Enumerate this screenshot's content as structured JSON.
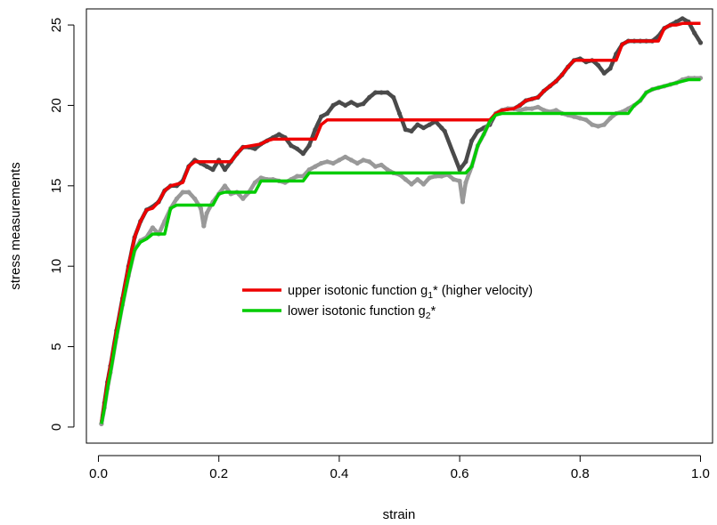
{
  "chart_data": {
    "type": "scatter",
    "title": "",
    "xlabel": "strain",
    "ylabel": "stress measurements",
    "xlim": [
      -0.02,
      1.02
    ],
    "ylim": [
      -1.0,
      26.0
    ],
    "x_ticks": [
      {
        "value": 0.0,
        "label": "0.0"
      },
      {
        "value": 0.2,
        "label": "0.2"
      },
      {
        "value": 0.4,
        "label": "0.4"
      },
      {
        "value": 0.6,
        "label": "0.6"
      },
      {
        "value": 0.8,
        "label": "0.8"
      },
      {
        "value": 1.0,
        "label": "1.0"
      }
    ],
    "y_ticks": [
      {
        "value": 0,
        "label": "0"
      },
      {
        "value": 5,
        "label": "5"
      },
      {
        "value": 10,
        "label": "10"
      },
      {
        "value": 15,
        "label": "15"
      },
      {
        "value": 20,
        "label": "20"
      },
      {
        "value": 25,
        "label": "25"
      }
    ],
    "grid": false,
    "legend_position": "center-right",
    "series": [
      {
        "kind": "points",
        "color": "#4a4a4a",
        "points": [
          [
            0.005,
            0.2
          ],
          [
            0.01,
            1.5
          ],
          [
            0.015,
            2.8
          ],
          [
            0.02,
            3.8
          ],
          [
            0.03,
            6.0
          ],
          [
            0.04,
            8.0
          ],
          [
            0.05,
            10.0
          ],
          [
            0.06,
            11.8
          ],
          [
            0.07,
            12.8
          ],
          [
            0.08,
            13.5
          ],
          [
            0.09,
            13.7
          ],
          [
            0.1,
            14.0
          ],
          [
            0.11,
            14.7
          ],
          [
            0.12,
            15.0
          ],
          [
            0.13,
            15.0
          ],
          [
            0.14,
            15.3
          ],
          [
            0.15,
            16.2
          ],
          [
            0.16,
            16.6
          ],
          [
            0.17,
            16.4
          ],
          [
            0.18,
            16.2
          ],
          [
            0.19,
            16.0
          ],
          [
            0.2,
            16.6
          ],
          [
            0.21,
            16.0
          ],
          [
            0.22,
            16.5
          ],
          [
            0.23,
            17.0
          ],
          [
            0.24,
            17.4
          ],
          [
            0.25,
            17.4
          ],
          [
            0.26,
            17.3
          ],
          [
            0.27,
            17.6
          ],
          [
            0.28,
            17.8
          ],
          [
            0.29,
            18.0
          ],
          [
            0.3,
            18.2
          ],
          [
            0.31,
            18.0
          ],
          [
            0.32,
            17.5
          ],
          [
            0.33,
            17.3
          ],
          [
            0.34,
            17.0
          ],
          [
            0.35,
            17.5
          ],
          [
            0.36,
            18.5
          ],
          [
            0.37,
            19.3
          ],
          [
            0.38,
            19.5
          ],
          [
            0.39,
            20.0
          ],
          [
            0.4,
            20.2
          ],
          [
            0.41,
            20.0
          ],
          [
            0.42,
            20.2
          ],
          [
            0.43,
            20.0
          ],
          [
            0.44,
            20.1
          ],
          [
            0.45,
            20.5
          ],
          [
            0.46,
            20.8
          ],
          [
            0.47,
            20.8
          ],
          [
            0.48,
            20.8
          ],
          [
            0.49,
            20.5
          ],
          [
            0.5,
            19.5
          ],
          [
            0.51,
            18.5
          ],
          [
            0.52,
            18.4
          ],
          [
            0.53,
            18.8
          ],
          [
            0.54,
            18.6
          ],
          [
            0.55,
            18.8
          ],
          [
            0.56,
            19.0
          ],
          [
            0.57,
            18.6
          ],
          [
            0.575,
            18.4
          ],
          [
            0.6,
            16.0
          ],
          [
            0.61,
            16.5
          ],
          [
            0.62,
            17.8
          ],
          [
            0.63,
            18.4
          ],
          [
            0.64,
            18.6
          ],
          [
            0.65,
            18.8
          ],
          [
            0.66,
            19.5
          ],
          [
            0.67,
            19.7
          ],
          [
            0.68,
            19.8
          ],
          [
            0.69,
            19.8
          ],
          [
            0.7,
            20.0
          ],
          [
            0.71,
            20.3
          ],
          [
            0.72,
            20.4
          ],
          [
            0.73,
            20.5
          ],
          [
            0.74,
            20.9
          ],
          [
            0.75,
            21.2
          ],
          [
            0.76,
            21.5
          ],
          [
            0.77,
            21.9
          ],
          [
            0.78,
            22.4
          ],
          [
            0.79,
            22.8
          ],
          [
            0.8,
            22.9
          ],
          [
            0.81,
            22.7
          ],
          [
            0.82,
            22.8
          ],
          [
            0.83,
            22.5
          ],
          [
            0.84,
            22.0
          ],
          [
            0.85,
            22.3
          ],
          [
            0.86,
            23.2
          ],
          [
            0.87,
            23.8
          ],
          [
            0.88,
            24.0
          ],
          [
            0.89,
            24.0
          ],
          [
            0.9,
            24.0
          ],
          [
            0.91,
            24.0
          ],
          [
            0.92,
            24.0
          ],
          [
            0.93,
            24.3
          ],
          [
            0.94,
            24.8
          ],
          [
            0.95,
            25.0
          ],
          [
            0.96,
            25.2
          ],
          [
            0.97,
            25.4
          ],
          [
            0.98,
            25.2
          ],
          [
            0.99,
            24.5
          ],
          [
            1.0,
            23.9
          ]
        ]
      },
      {
        "kind": "points",
        "color": "#999999",
        "points": [
          [
            0.005,
            0.2
          ],
          [
            0.01,
            1.2
          ],
          [
            0.015,
            2.4
          ],
          [
            0.02,
            3.4
          ],
          [
            0.03,
            5.6
          ],
          [
            0.04,
            7.6
          ],
          [
            0.05,
            9.4
          ],
          [
            0.06,
            11.0
          ],
          [
            0.07,
            11.6
          ],
          [
            0.08,
            11.8
          ],
          [
            0.09,
            12.4
          ],
          [
            0.1,
            12.0
          ],
          [
            0.11,
            12.8
          ],
          [
            0.12,
            13.6
          ],
          [
            0.13,
            14.2
          ],
          [
            0.14,
            14.6
          ],
          [
            0.15,
            14.6
          ],
          [
            0.16,
            14.2
          ],
          [
            0.17,
            13.6
          ],
          [
            0.175,
            12.5
          ],
          [
            0.18,
            13.3
          ],
          [
            0.19,
            14.0
          ],
          [
            0.2,
            14.5
          ],
          [
            0.21,
            15.0
          ],
          [
            0.22,
            14.5
          ],
          [
            0.23,
            14.6
          ],
          [
            0.24,
            14.2
          ],
          [
            0.25,
            14.6
          ],
          [
            0.26,
            15.2
          ],
          [
            0.27,
            15.5
          ],
          [
            0.28,
            15.4
          ],
          [
            0.29,
            15.4
          ],
          [
            0.3,
            15.3
          ],
          [
            0.31,
            15.2
          ],
          [
            0.32,
            15.4
          ],
          [
            0.33,
            15.6
          ],
          [
            0.34,
            15.6
          ],
          [
            0.35,
            16.0
          ],
          [
            0.36,
            16.2
          ],
          [
            0.37,
            16.4
          ],
          [
            0.38,
            16.5
          ],
          [
            0.39,
            16.4
          ],
          [
            0.4,
            16.6
          ],
          [
            0.41,
            16.8
          ],
          [
            0.42,
            16.6
          ],
          [
            0.43,
            16.4
          ],
          [
            0.44,
            16.6
          ],
          [
            0.45,
            16.5
          ],
          [
            0.46,
            16.2
          ],
          [
            0.47,
            16.3
          ],
          [
            0.48,
            16.0
          ],
          [
            0.49,
            15.8
          ],
          [
            0.5,
            15.7
          ],
          [
            0.51,
            15.4
          ],
          [
            0.52,
            15.1
          ],
          [
            0.53,
            15.4
          ],
          [
            0.54,
            15.1
          ],
          [
            0.55,
            15.5
          ],
          [
            0.56,
            15.6
          ],
          [
            0.57,
            15.6
          ],
          [
            0.58,
            15.7
          ],
          [
            0.59,
            15.4
          ],
          [
            0.6,
            15.3
          ],
          [
            0.605,
            14.0
          ],
          [
            0.61,
            15.2
          ],
          [
            0.62,
            16.2
          ],
          [
            0.63,
            17.5
          ],
          [
            0.64,
            18.2
          ],
          [
            0.65,
            19.0
          ],
          [
            0.66,
            19.5
          ],
          [
            0.67,
            19.7
          ],
          [
            0.68,
            19.8
          ],
          [
            0.69,
            19.8
          ],
          [
            0.7,
            19.7
          ],
          [
            0.71,
            19.8
          ],
          [
            0.72,
            19.8
          ],
          [
            0.73,
            19.9
          ],
          [
            0.74,
            19.7
          ],
          [
            0.75,
            19.6
          ],
          [
            0.76,
            19.7
          ],
          [
            0.77,
            19.5
          ],
          [
            0.78,
            19.4
          ],
          [
            0.79,
            19.3
          ],
          [
            0.8,
            19.2
          ],
          [
            0.81,
            19.1
          ],
          [
            0.82,
            18.8
          ],
          [
            0.83,
            18.7
          ],
          [
            0.84,
            18.8
          ],
          [
            0.85,
            19.2
          ],
          [
            0.86,
            19.5
          ],
          [
            0.87,
            19.6
          ],
          [
            0.88,
            19.8
          ],
          [
            0.89,
            20.0
          ],
          [
            0.9,
            20.3
          ],
          [
            0.91,
            20.8
          ],
          [
            0.92,
            21.0
          ],
          [
            0.93,
            21.1
          ],
          [
            0.94,
            21.2
          ],
          [
            0.95,
            21.3
          ],
          [
            0.96,
            21.4
          ],
          [
            0.97,
            21.6
          ],
          [
            0.98,
            21.7
          ],
          [
            0.99,
            21.7
          ],
          [
            1.0,
            21.7
          ]
        ]
      },
      {
        "kind": "step",
        "name": "upper isotonic function g",
        "color": "#ee0000",
        "points": [
          [
            0.005,
            0.3
          ],
          [
            0.01,
            1.5
          ],
          [
            0.015,
            2.8
          ],
          [
            0.02,
            3.8
          ],
          [
            0.03,
            6.0
          ],
          [
            0.04,
            8.0
          ],
          [
            0.05,
            10.0
          ],
          [
            0.06,
            11.8
          ],
          [
            0.07,
            12.8
          ],
          [
            0.08,
            13.5
          ],
          [
            0.09,
            13.6
          ],
          [
            0.1,
            14.0
          ],
          [
            0.11,
            14.7
          ],
          [
            0.12,
            15.0
          ],
          [
            0.14,
            15.2
          ],
          [
            0.15,
            16.2
          ],
          [
            0.16,
            16.5
          ],
          [
            0.22,
            16.5
          ],
          [
            0.23,
            17.0
          ],
          [
            0.24,
            17.4
          ],
          [
            0.27,
            17.6
          ],
          [
            0.28,
            17.8
          ],
          [
            0.29,
            17.9
          ],
          [
            0.36,
            17.9
          ],
          [
            0.37,
            18.8
          ],
          [
            0.38,
            19.1
          ],
          [
            0.65,
            19.1
          ],
          [
            0.66,
            19.5
          ],
          [
            0.67,
            19.7
          ],
          [
            0.69,
            19.8
          ],
          [
            0.7,
            20.0
          ],
          [
            0.71,
            20.3
          ],
          [
            0.73,
            20.5
          ],
          [
            0.74,
            20.9
          ],
          [
            0.75,
            21.2
          ],
          [
            0.76,
            21.5
          ],
          [
            0.77,
            21.9
          ],
          [
            0.78,
            22.4
          ],
          [
            0.79,
            22.8
          ],
          [
            0.86,
            22.8
          ],
          [
            0.87,
            23.8
          ],
          [
            0.88,
            24.0
          ],
          [
            0.93,
            24.0
          ],
          [
            0.94,
            24.8
          ],
          [
            0.95,
            25.0
          ],
          [
            0.96,
            25.0
          ],
          [
            0.97,
            25.1
          ],
          [
            1.0,
            25.1
          ]
        ]
      },
      {
        "kind": "step",
        "name": "lower isotonic function g",
        "color": "#00cc00",
        "points": [
          [
            0.005,
            0.2
          ],
          [
            0.01,
            1.2
          ],
          [
            0.015,
            2.4
          ],
          [
            0.02,
            3.4
          ],
          [
            0.03,
            5.6
          ],
          [
            0.04,
            7.6
          ],
          [
            0.05,
            9.4
          ],
          [
            0.06,
            11.0
          ],
          [
            0.07,
            11.5
          ],
          [
            0.08,
            11.7
          ],
          [
            0.09,
            12.0
          ],
          [
            0.11,
            12.0
          ],
          [
            0.12,
            13.6
          ],
          [
            0.13,
            13.8
          ],
          [
            0.19,
            13.8
          ],
          [
            0.2,
            14.5
          ],
          [
            0.21,
            14.6
          ],
          [
            0.26,
            14.6
          ],
          [
            0.27,
            15.3
          ],
          [
            0.34,
            15.3
          ],
          [
            0.35,
            15.8
          ],
          [
            0.61,
            15.8
          ],
          [
            0.62,
            16.2
          ],
          [
            0.63,
            17.5
          ],
          [
            0.64,
            18.2
          ],
          [
            0.65,
            19.0
          ],
          [
            0.66,
            19.4
          ],
          [
            0.67,
            19.5
          ],
          [
            0.88,
            19.5
          ],
          [
            0.89,
            20.0
          ],
          [
            0.9,
            20.3
          ],
          [
            0.91,
            20.8
          ],
          [
            0.92,
            21.0
          ],
          [
            0.93,
            21.1
          ],
          [
            0.94,
            21.2
          ],
          [
            0.95,
            21.3
          ],
          [
            0.96,
            21.4
          ],
          [
            0.97,
            21.5
          ],
          [
            0.98,
            21.6
          ],
          [
            1.0,
            21.6
          ]
        ]
      }
    ],
    "legend": [
      {
        "label": "upper isotonic function g",
        "subscript": "1",
        "suffix": "* (higher velocity)",
        "color": "#ee0000"
      },
      {
        "label": "lower isotonic function g",
        "subscript": "2",
        "suffix": "*",
        "color": "#00cc00"
      }
    ]
  }
}
